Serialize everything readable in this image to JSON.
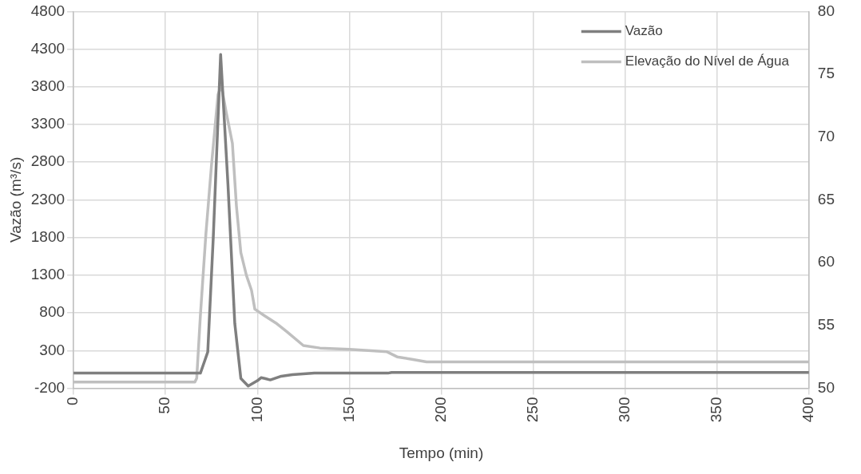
{
  "chart_data": {
    "type": "line",
    "xlabel": "Tempo (min)",
    "ylabel": "Vazão (m³/s)",
    "xlim": [
      0,
      400
    ],
    "xticks": [
      0,
      50,
      100,
      150,
      200,
      250,
      300,
      350,
      400
    ],
    "ylim": [
      -200,
      4800
    ],
    "yticks": [
      -200,
      300,
      800,
      1300,
      1800,
      2300,
      2800,
      3300,
      3800,
      4300,
      4800
    ],
    "y2lim": [
      50,
      80
    ],
    "y2ticks": [
      50,
      55,
      60,
      65,
      70,
      75,
      80
    ],
    "grid": true,
    "legend": "top right",
    "marker": "none",
    "line_style": "solid",
    "series": [
      {
        "name": "Vazão",
        "color": "#7f7f7f",
        "x": [
          0,
          69,
          73,
          76,
          80,
          84,
          87.7,
          91,
          95,
          100,
          102,
          104,
          107,
          113,
          119,
          131,
          171,
          173,
          400
        ],
        "values": [
          0,
          0,
          280,
          1800,
          4230,
          2500,
          660,
          -70,
          -170,
          -100,
          -60,
          -70,
          -90,
          -40,
          -20,
          0,
          0,
          10,
          10
        ]
      },
      {
        "name": "Elevação do Nível de Água",
        "color": "#bfbfbf",
        "axis": "y2",
        "x": [
          0,
          66,
          67,
          69,
          72,
          75,
          78.6,
          80.4,
          83,
          86.4,
          88.6,
          91,
          94,
          96.8,
          98.6,
          103.6,
          110,
          116,
          125,
          134,
          150,
          170.5,
          176,
          184,
          192,
          400
        ],
        "values": [
          50.5,
          50.5,
          50.8,
          55.8,
          62.3,
          67.7,
          73.4,
          74.1,
          72,
          69.5,
          64.5,
          60.8,
          59,
          57.8,
          56.3,
          55.8,
          55.2,
          54.5,
          53.4,
          53.2,
          53.1,
          52.9,
          52.5,
          52.3,
          52.1,
          52.1
        ]
      }
    ]
  }
}
